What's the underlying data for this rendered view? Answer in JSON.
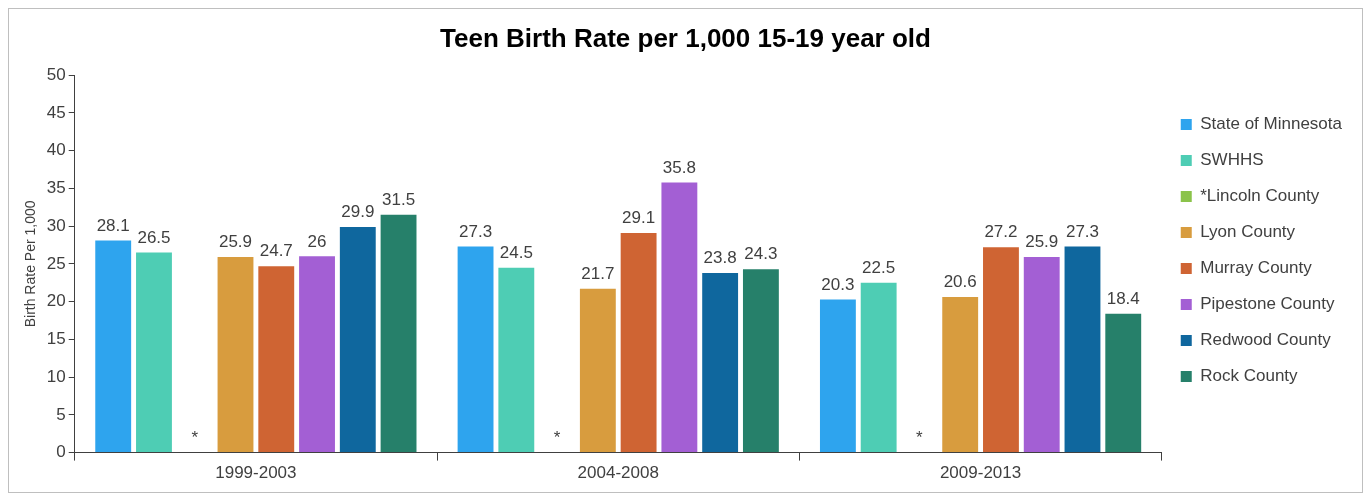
{
  "chart_data": {
    "type": "bar",
    "title": "Teen Birth Rate per 1,000 15-19 year old",
    "ylabel": "Birth Rate Per 1,000",
    "categories": [
      "1999-2003",
      "2004-2008",
      "2009-2013"
    ],
    "series": [
      {
        "name": "State of Minnesota",
        "color": "#2ea4ee",
        "values": [
          28.1,
          27.3,
          20.3
        ]
      },
      {
        "name": "SWHHS",
        "color": "#4ecdb4",
        "values": [
          26.5,
          24.5,
          22.5
        ]
      },
      {
        "name": "*Lincoln County",
        "color": "#8bc34a",
        "values": [
          null,
          null,
          null
        ],
        "value_labels": [
          "*",
          "*",
          "*"
        ]
      },
      {
        "name": "Lyon County",
        "color": "#d89c3e",
        "values": [
          25.9,
          21.7,
          20.6
        ]
      },
      {
        "name": "Murray County",
        "color": "#cf6433",
        "values": [
          24.7,
          29.1,
          27.2
        ]
      },
      {
        "name": "Pipestone County",
        "color": "#a35fd4",
        "values": [
          26,
          35.8,
          25.9
        ]
      },
      {
        "name": "Redwood County",
        "color": "#0f679e",
        "values": [
          29.9,
          23.8,
          27.3
        ]
      },
      {
        "name": "Rock County",
        "color": "#26806a",
        "values": [
          31.5,
          24.3,
          18.4
        ]
      }
    ],
    "ylim": [
      0,
      50
    ],
    "yticks": [
      0,
      5,
      10,
      15,
      20,
      25,
      30,
      35,
      40,
      45,
      50
    ],
    "grid": false,
    "legend": "right",
    "data_labels": true
  }
}
